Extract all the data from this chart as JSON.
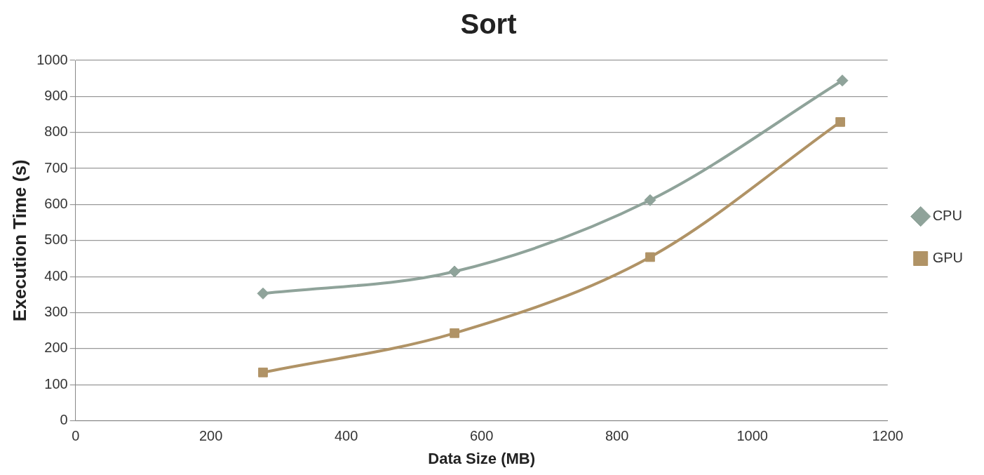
{
  "chart_data": {
    "type": "line",
    "title": "Sort",
    "xlabel": "Data Size (MB)",
    "ylabel": "Execution Time (s)",
    "xlim": [
      0,
      1200
    ],
    "xticks": [
      0,
      200,
      400,
      600,
      800,
      1000,
      1200
    ],
    "ylim": [
      0,
      1000
    ],
    "yticks": [
      0,
      100,
      200,
      300,
      400,
      500,
      600,
      700,
      800,
      900,
      1000
    ],
    "grid": "y",
    "legend": "right",
    "line_style": "solid",
    "series": [
      {
        "name": "CPU",
        "color": "#8fa39a",
        "marker": "diamond",
        "x": [
          277,
          560,
          849,
          1133
        ],
        "values": [
          353,
          414,
          612,
          944
        ]
      },
      {
        "name": "GPU",
        "color": "#b09366",
        "marker": "square",
        "x": [
          277,
          560,
          849,
          1130
        ],
        "values": [
          134,
          243,
          454,
          829
        ]
      }
    ]
  }
}
